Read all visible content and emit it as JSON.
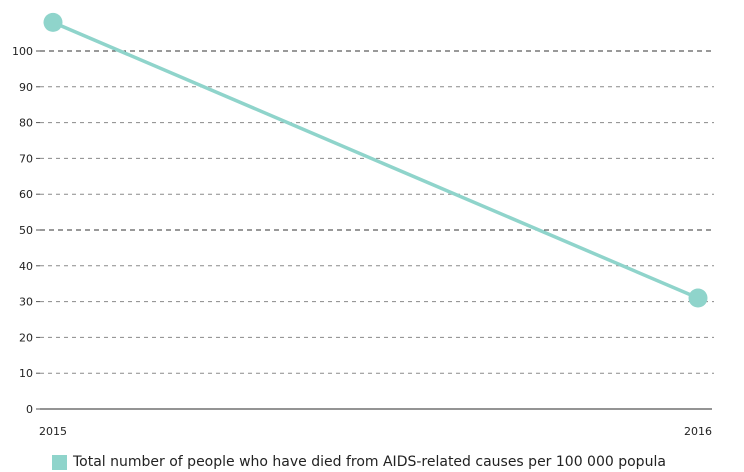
{
  "chart_data": {
    "type": "line",
    "x": [
      "2015",
      "2016"
    ],
    "series": [
      {
        "name": "Total number of people who have died from AIDS-related causes per 100 000 popula",
        "values": [
          108,
          31
        ],
        "color": "#8fd4cb"
      }
    ],
    "ylim": [
      0,
      100
    ],
    "yticks": [
      0,
      10,
      20,
      30,
      40,
      50,
      60,
      70,
      80,
      90,
      100
    ],
    "grid": true,
    "legend": "bottom-left",
    "title": "",
    "xlabel": "",
    "ylabel": ""
  }
}
